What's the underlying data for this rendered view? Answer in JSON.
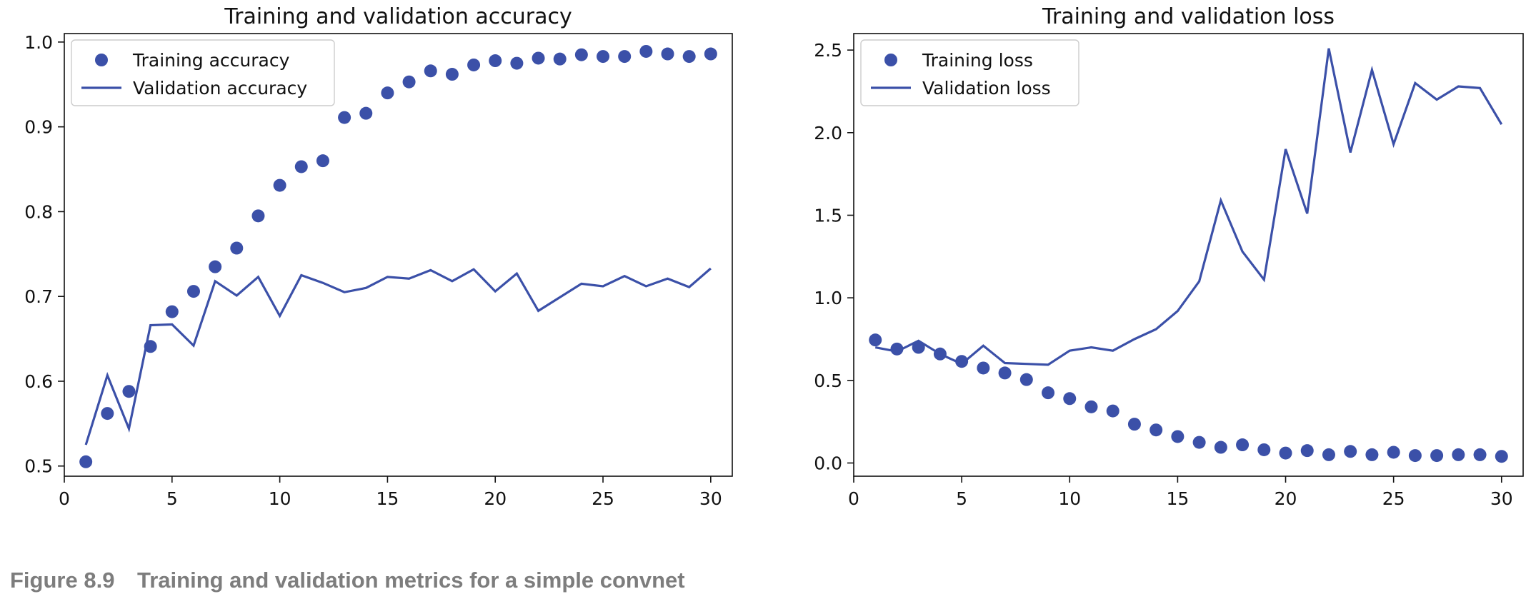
{
  "chart_data": [
    {
      "type": "line",
      "title": "Training and validation accuracy",
      "xlabel": "",
      "ylabel": "",
      "xlim": [
        0,
        31
      ],
      "ylim": [
        0.488,
        1.01
      ],
      "xticks": [
        0,
        5,
        10,
        15,
        20,
        25,
        30
      ],
      "xtick_labels": [
        "0",
        "5",
        "10",
        "15",
        "20",
        "25",
        "30"
      ],
      "yticks": [
        0.5,
        0.6,
        0.7,
        0.8,
        0.9,
        1.0
      ],
      "ytick_labels": [
        "0.5",
        "0.6",
        "0.7",
        "0.8",
        "0.9",
        "1.0"
      ],
      "grid": false,
      "legend_position": "top-left",
      "x": [
        1,
        2,
        3,
        4,
        5,
        6,
        7,
        8,
        9,
        10,
        11,
        12,
        13,
        14,
        15,
        16,
        17,
        18,
        19,
        20,
        21,
        22,
        23,
        24,
        25,
        26,
        27,
        28,
        29,
        30
      ],
      "series": [
        {
          "name": "Training accuracy",
          "style": "markers",
          "color": "#3b50a8",
          "values": [
            0.505,
            0.562,
            0.588,
            0.641,
            0.682,
            0.706,
            0.735,
            0.757,
            0.795,
            0.831,
            0.853,
            0.86,
            0.911,
            0.916,
            0.94,
            0.953,
            0.966,
            0.962,
            0.973,
            0.978,
            0.975,
            0.981,
            0.98,
            0.985,
            0.983,
            0.983,
            0.989,
            0.986,
            0.983,
            0.986
          ]
        },
        {
          "name": "Validation accuracy",
          "style": "line",
          "color": "#3b50a8",
          "values": [
            0.525,
            0.607,
            0.544,
            0.666,
            0.667,
            0.642,
            0.718,
            0.701,
            0.723,
            0.677,
            0.725,
            0.716,
            0.705,
            0.71,
            0.723,
            0.721,
            0.731,
            0.718,
            0.732,
            0.706,
            0.727,
            0.683,
            0.699,
            0.715,
            0.712,
            0.724,
            0.712,
            0.721,
            0.711,
            0.733
          ]
        }
      ]
    },
    {
      "type": "line",
      "title": "Training and validation loss",
      "xlabel": "",
      "ylabel": "",
      "xlim": [
        0,
        31
      ],
      "ylim": [
        -0.08,
        2.6
      ],
      "xticks": [
        0,
        5,
        10,
        15,
        20,
        25,
        30
      ],
      "xtick_labels": [
        "0",
        "5",
        "10",
        "15",
        "20",
        "25",
        "30"
      ],
      "yticks": [
        0.0,
        0.5,
        1.0,
        1.5,
        2.0,
        2.5
      ],
      "ytick_labels": [
        "0.0",
        "0.5",
        "1.0",
        "1.5",
        "2.0",
        "2.5"
      ],
      "grid": false,
      "legend_position": "top-left",
      "x": [
        1,
        2,
        3,
        4,
        5,
        6,
        7,
        8,
        9,
        10,
        11,
        12,
        13,
        14,
        15,
        16,
        17,
        18,
        19,
        20,
        21,
        22,
        23,
        24,
        25,
        26,
        27,
        28,
        29,
        30
      ],
      "series": [
        {
          "name": "Training loss",
          "style": "markers",
          "color": "#3b50a8",
          "values": [
            0.745,
            0.69,
            0.7,
            0.66,
            0.615,
            0.575,
            0.545,
            0.505,
            0.425,
            0.39,
            0.34,
            0.315,
            0.235,
            0.2,
            0.16,
            0.125,
            0.095,
            0.11,
            0.08,
            0.06,
            0.075,
            0.05,
            0.07,
            0.05,
            0.065,
            0.045,
            0.045,
            0.05,
            0.05,
            0.04
          ]
        },
        {
          "name": "Validation loss",
          "style": "line",
          "color": "#3b50a8",
          "values": [
            0.7,
            0.675,
            0.74,
            0.66,
            0.6,
            0.71,
            0.605,
            0.6,
            0.595,
            0.68,
            0.7,
            0.68,
            0.75,
            0.81,
            0.92,
            1.1,
            1.59,
            1.28,
            1.11,
            1.9,
            1.51,
            2.51,
            1.88,
            2.38,
            1.93,
            2.3,
            2.2,
            2.28,
            2.27,
            2.05
          ]
        }
      ]
    }
  ],
  "caption": {
    "number": "Figure 8.9",
    "text": "Training and validation metrics for a simple convnet"
  }
}
